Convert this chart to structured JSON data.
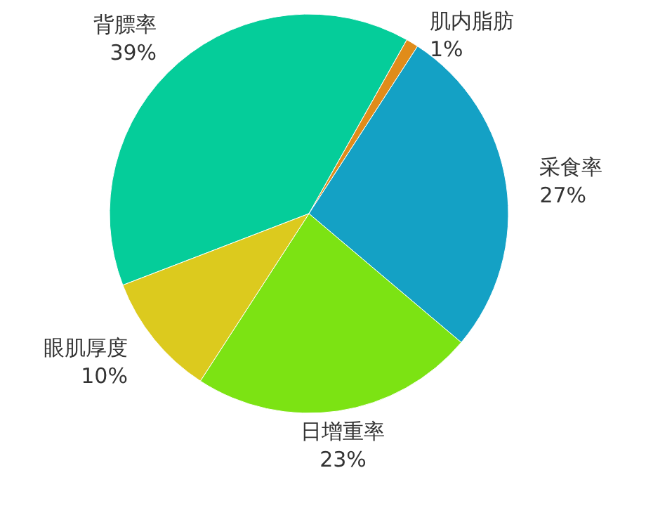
{
  "chart_data": {
    "type": "pie",
    "categories": [
      "背膘率",
      "肌内脂肪",
      "采食率",
      "日增重率",
      "眼肌厚度"
    ],
    "values": [
      39,
      1,
      27,
      23,
      10
    ],
    "value_labels": [
      "39%",
      "1%",
      "27%",
      "23%",
      "10%"
    ],
    "colors": [
      "#05cd9a",
      "#e08c1a",
      "#14a1c5",
      "#7ce313",
      "#dcca1e"
    ]
  }
}
